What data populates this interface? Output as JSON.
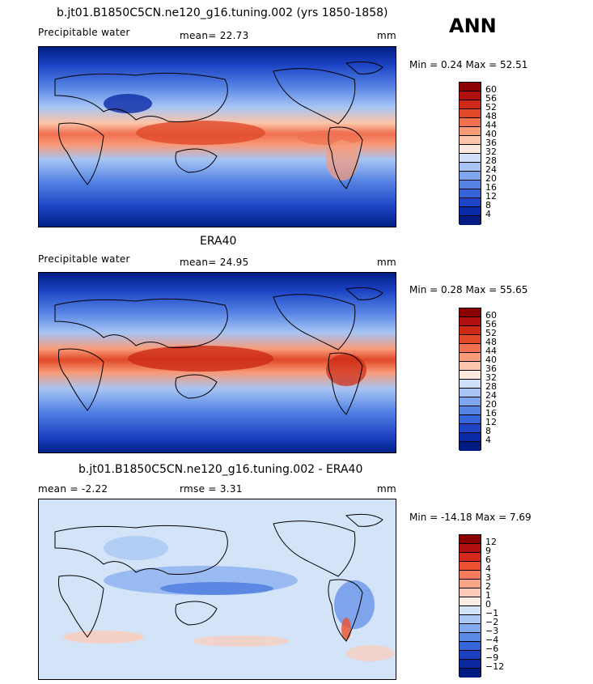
{
  "header": {
    "panel1_title": "b.jt01.B1850C5CN.ne120_g16.tuning.002 (yrs 1850-1858)",
    "season": "ANN",
    "panel2_title": "ERA40",
    "panel3_title": "b.jt01.B1850C5CN.ne120_g16.tuning.002 - ERA40"
  },
  "panels": [
    {
      "left_label": "Precipitable water",
      "mid_label": "mean=  22.73",
      "units": "mm",
      "minmax": "Min =    0.24  Max =   52.51"
    },
    {
      "left_label": "Precipitable water",
      "mid_label": "mean=  24.95",
      "units": "mm",
      "minmax": "Min =    0.28  Max =   55.65"
    },
    {
      "left_label": "mean =   -2.22",
      "mid_label": "rmse =    3.31",
      "units": "mm",
      "minmax": "Min = -14.18  Max =    7.69"
    }
  ],
  "colorbars": {
    "absolute": {
      "labels": [
        "60",
        "56",
        "52",
        "48",
        "44",
        "40",
        "36",
        "32",
        "28",
        "24",
        "20",
        "16",
        "12",
        "8",
        "4"
      ],
      "colors": [
        "#8b0000",
        "#b01010",
        "#cc2a14",
        "#e04a28",
        "#f07050",
        "#f89a78",
        "#fcc4a8",
        "#fce8dc",
        "#cfe0f8",
        "#a6c4f4",
        "#7ea6ee",
        "#5684e4",
        "#3464d8",
        "#1c44c4",
        "#0a2aa6",
        "#001c82"
      ]
    },
    "difference": {
      "labels": [
        "12",
        "9",
        "6",
        "4",
        "3",
        "2",
        "1",
        "0",
        "−1",
        "−2",
        "−3",
        "−4",
        "−6",
        "−9",
        "−12"
      ],
      "colors": [
        "#8b0000",
        "#b01010",
        "#d42818",
        "#ec5030",
        "#f47c5c",
        "#f8a688",
        "#fcccb8",
        "#fcece4",
        "#d4e4f8",
        "#aac8f4",
        "#82aaee",
        "#5a8ae6",
        "#3464d8",
        "#1c40c0",
        "#0a28a0",
        "#001c82"
      ]
    }
  }
}
